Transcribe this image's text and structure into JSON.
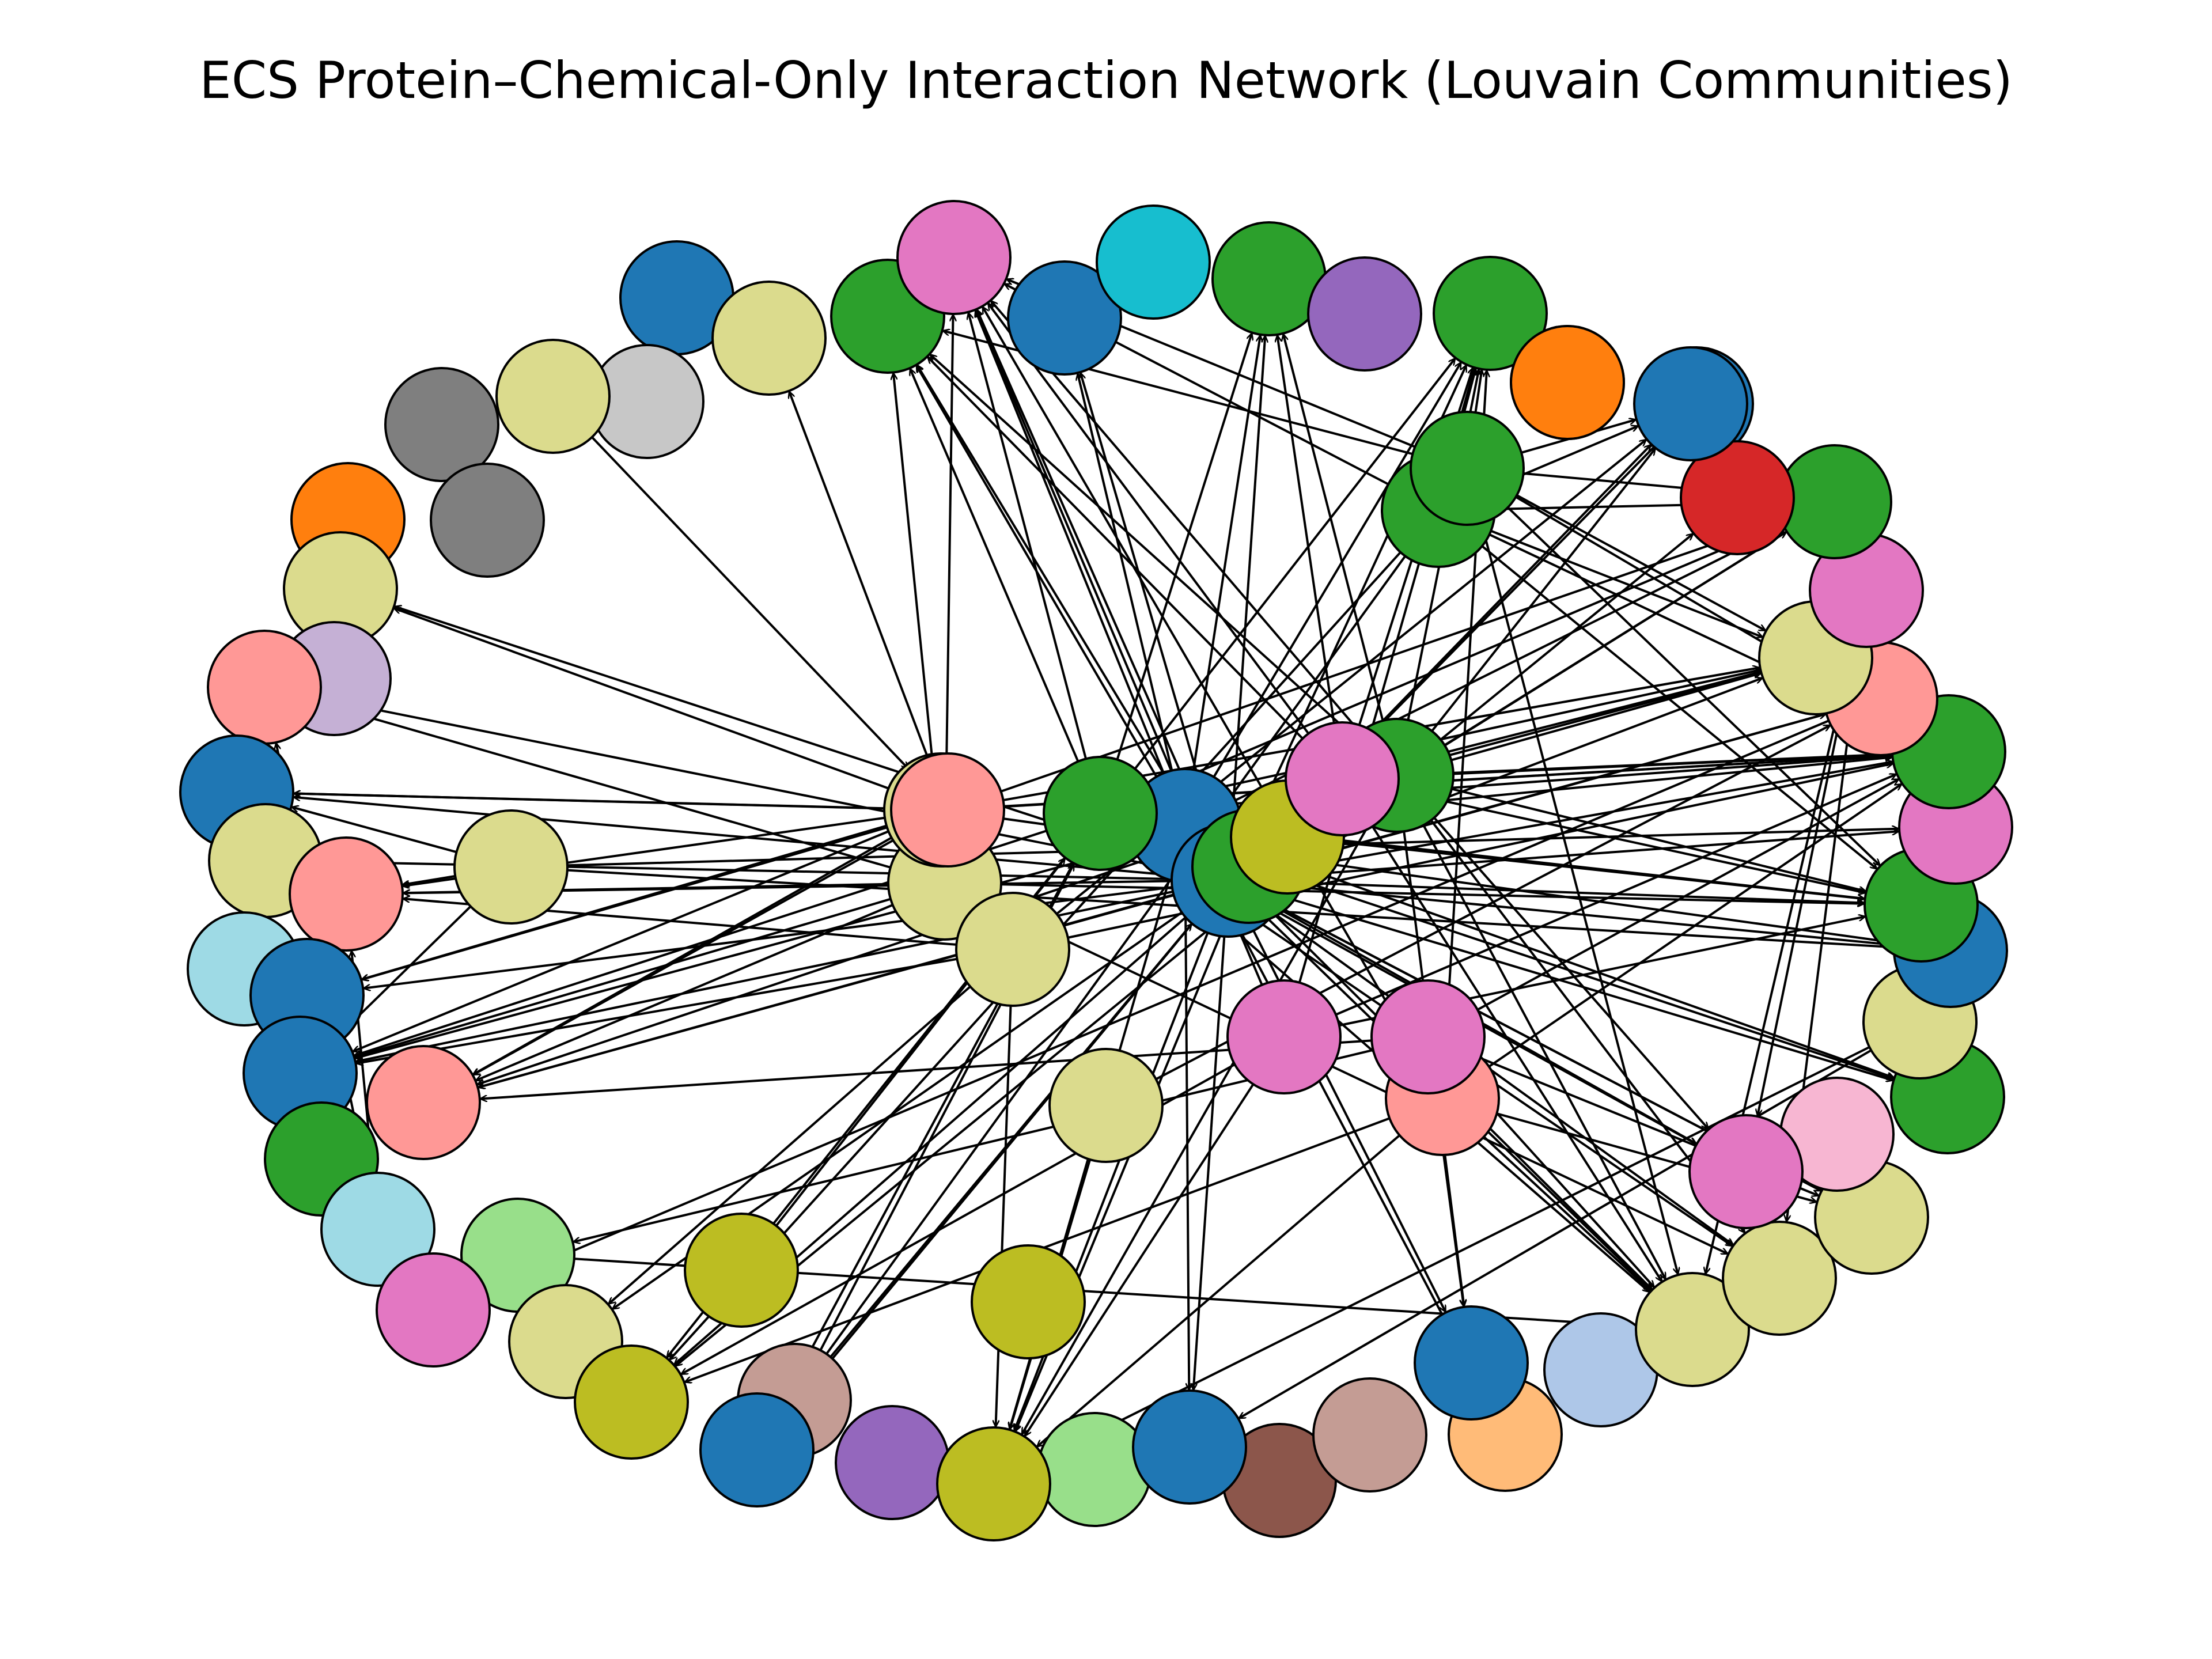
{
  "title": "ECS Protein–Chemical-Only Interaction Network (Louvain Communities)",
  "palette": {
    "tab_blue": "#1f77b4",
    "tab_orange": "#ff7f0e",
    "tab_green": "#2ca02c",
    "tab_red": "#d62728",
    "tab_purple": "#9467bd",
    "tab_brown": "#8c564b",
    "tab_pink": "#e377c2",
    "tab_gray": "#7f7f7f",
    "tab_olive": "#bcbd22",
    "tab_cyan": "#17becf",
    "light_blue": "#aec7e8",
    "light_orange": "#ffbb78",
    "light_green": "#98df8a",
    "light_red": "#ff9896",
    "light_purple": "#c5b0d5",
    "light_brown": "#c49c94",
    "light_pink": "#f7b6d2",
    "light_gray": "#c7c7c7",
    "light_olive": "#dbdb8d",
    "light_cyan": "#9edae5"
  },
  "nodes": [
    {
      "id": "n1",
      "color": "tab_blue"
    },
    {
      "id": "n2",
      "color": "light_olive"
    },
    {
      "id": "n3",
      "color": "tab_green"
    },
    {
      "id": "n4",
      "color": "tab_pink"
    },
    {
      "id": "n5",
      "color": "tab_blue"
    },
    {
      "id": "n6",
      "color": "tab_cyan"
    },
    {
      "id": "n7",
      "color": "tab_green"
    },
    {
      "id": "n8",
      "color": "tab_purple"
    },
    {
      "id": "n9",
      "color": "tab_orange"
    },
    {
      "id": "n10",
      "color": "tab_green"
    },
    {
      "id": "n11",
      "color": "tab_blue"
    },
    {
      "id": "n12",
      "color": "light_gray"
    },
    {
      "id": "n13",
      "color": "light_olive"
    },
    {
      "id": "n14",
      "color": "tab_gray"
    },
    {
      "id": "n15",
      "color": "tab_gray"
    },
    {
      "id": "n16",
      "color": "tab_orange"
    },
    {
      "id": "n17",
      "color": "light_olive"
    },
    {
      "id": "n18",
      "color": "light_purple"
    },
    {
      "id": "n19",
      "color": "light_red"
    },
    {
      "id": "n20",
      "color": "tab_blue"
    },
    {
      "id": "n21",
      "color": "light_olive"
    },
    {
      "id": "n22",
      "color": "light_red"
    },
    {
      "id": "n23",
      "color": "light_cyan"
    },
    {
      "id": "n24",
      "color": "tab_blue"
    },
    {
      "id": "n25",
      "color": "tab_blue"
    },
    {
      "id": "n26",
      "color": "light_red"
    },
    {
      "id": "n27",
      "color": "tab_green"
    },
    {
      "id": "n28",
      "color": "light_cyan"
    },
    {
      "id": "n29",
      "color": "light_green"
    },
    {
      "id": "n30",
      "color": "tab_pink"
    },
    {
      "id": "n31",
      "color": "light_olive"
    },
    {
      "id": "n32",
      "color": "tab_olive"
    },
    {
      "id": "n33",
      "color": "light_brown"
    },
    {
      "id": "n34",
      "color": "tab_blue"
    },
    {
      "id": "n35",
      "color": "tab_purple"
    },
    {
      "id": "n36",
      "color": "light_green"
    },
    {
      "id": "n37",
      "color": "tab_olive"
    },
    {
      "id": "n38",
      "color": "tab_brown"
    },
    {
      "id": "n39",
      "color": "tab_blue"
    },
    {
      "id": "n40",
      "color": "light_brown"
    },
    {
      "id": "n41",
      "color": "light_orange"
    },
    {
      "id": "n42",
      "color": "tab_blue"
    },
    {
      "id": "n43",
      "color": "light_blue"
    },
    {
      "id": "n44",
      "color": "light_olive"
    },
    {
      "id": "n45",
      "color": "light_olive"
    },
    {
      "id": "n46",
      "color": "light_olive"
    },
    {
      "id": "n47",
      "color": "light_pink"
    },
    {
      "id": "n48",
      "color": "tab_pink"
    },
    {
      "id": "n49",
      "color": "tab_green"
    },
    {
      "id": "n50",
      "color": "light_olive"
    },
    {
      "id": "n51",
      "color": "tab_blue"
    },
    {
      "id": "n52",
      "color": "tab_green"
    },
    {
      "id": "n53",
      "color": "tab_pink"
    },
    {
      "id": "n54",
      "color": "tab_green"
    },
    {
      "id": "n55",
      "color": "light_red"
    },
    {
      "id": "n56",
      "color": "light_olive"
    },
    {
      "id": "n57",
      "color": "tab_pink"
    },
    {
      "id": "n58",
      "color": "tab_green"
    },
    {
      "id": "n59",
      "color": "tab_red"
    },
    {
      "id": "n60",
      "color": "tab_blue"
    },
    {
      "id": "n61",
      "color": "tab_orange"
    },
    {
      "id": "n62",
      "color": "tab_green"
    },
    {
      "id": "n63",
      "color": "tab_green"
    },
    {
      "id": "n64",
      "color": "light_olive"
    },
    {
      "id": "n65",
      "color": "tab_olive"
    },
    {
      "id": "n66",
      "color": "tab_olive"
    },
    {
      "id": "n67",
      "color": "light_red"
    },
    {
      "id": "n68",
      "color": "tab_pink"
    },
    {
      "id": "n69",
      "color": "tab_pink"
    },
    {
      "id": "n70",
      "color": "light_olive"
    },
    {
      "id": "n71",
      "color": "light_olive"
    },
    {
      "id": "n72",
      "color": "light_olive"
    },
    {
      "id": "n73",
      "color": "light_red"
    },
    {
      "id": "n74",
      "color": "light_olive"
    },
    {
      "id": "n75",
      "color": "tab_green"
    },
    {
      "id": "n76",
      "color": "tab_blue"
    },
    {
      "id": "n77",
      "color": "tab_blue"
    },
    {
      "id": "n78",
      "color": "tab_green"
    },
    {
      "id": "n79",
      "color": "tab_olive"
    },
    {
      "id": "n80",
      "color": "tab_pink"
    },
    {
      "id": "n81",
      "color": "tab_green"
    }
  ],
  "edges": [
    [
      "n77",
      "n3"
    ],
    [
      "n77",
      "n4"
    ],
    [
      "n77",
      "n5"
    ],
    [
      "n77",
      "n7"
    ],
    [
      "n77",
      "n10"
    ],
    [
      "n77",
      "n11"
    ],
    [
      "n77",
      "n54"
    ],
    [
      "n77",
      "n52"
    ],
    [
      "n77",
      "n56"
    ],
    [
      "n77",
      "n55"
    ],
    [
      "n77",
      "n53"
    ],
    [
      "n77",
      "n58"
    ],
    [
      "n77",
      "n60"
    ],
    [
      "n77",
      "n51"
    ],
    [
      "n77",
      "n49"
    ],
    [
      "n77",
      "n46"
    ],
    [
      "n77",
      "n45"
    ],
    [
      "n77",
      "n44"
    ],
    [
      "n77",
      "n42"
    ],
    [
      "n77",
      "n39"
    ],
    [
      "n77",
      "n37"
    ],
    [
      "n77",
      "n34"
    ],
    [
      "n77",
      "n32"
    ],
    [
      "n77",
      "n31"
    ],
    [
      "n77",
      "n26"
    ],
    [
      "n77",
      "n25"
    ],
    [
      "n77",
      "n24"
    ],
    [
      "n77",
      "n22"
    ],
    [
      "n77",
      "n20"
    ],
    [
      "n77",
      "n19"
    ],
    [
      "n77",
      "n17"
    ],
    [
      "n77",
      "n21"
    ],
    [
      "n77",
      "n48"
    ],
    [
      "n76",
      "n3"
    ],
    [
      "n76",
      "n4"
    ],
    [
      "n76",
      "n5"
    ],
    [
      "n76",
      "n7"
    ],
    [
      "n76",
      "n10"
    ],
    [
      "n76",
      "n37"
    ],
    [
      "n76",
      "n39"
    ],
    [
      "n76",
      "n41"
    ],
    [
      "n76",
      "n44"
    ],
    [
      "n76",
      "n49"
    ],
    [
      "n76",
      "n52"
    ],
    [
      "n76",
      "n54"
    ],
    [
      "n76",
      "n56"
    ],
    [
      "n76",
      "n58"
    ],
    [
      "n81",
      "n7"
    ],
    [
      "n81",
      "n10"
    ],
    [
      "n81",
      "n3"
    ],
    [
      "n81",
      "n54"
    ],
    [
      "n81",
      "n52"
    ],
    [
      "n81",
      "n56"
    ],
    [
      "n81",
      "n58"
    ],
    [
      "n81",
      "n44"
    ],
    [
      "n81",
      "n34"
    ],
    [
      "n81",
      "n32"
    ],
    [
      "n81",
      "n48"
    ],
    [
      "n81",
      "n46"
    ],
    [
      "n81",
      "n45"
    ],
    [
      "n81",
      "n25"
    ],
    [
      "n81",
      "n4"
    ],
    [
      "n81",
      "n49"
    ],
    [
      "n75",
      "n7"
    ],
    [
      "n75",
      "n10"
    ],
    [
      "n75",
      "n3"
    ],
    [
      "n75",
      "n4"
    ],
    [
      "n75",
      "n54"
    ],
    [
      "n75",
      "n52"
    ],
    [
      "n75",
      "n56"
    ],
    [
      "n75",
      "n58"
    ],
    [
      "n75",
      "n59"
    ],
    [
      "n75",
      "n60"
    ],
    [
      "n75",
      "n44"
    ],
    [
      "n75",
      "n42"
    ],
    [
      "n75",
      "n37"
    ],
    [
      "n75",
      "n32"
    ],
    [
      "n75",
      "n26"
    ],
    [
      "n75",
      "n48"
    ],
    [
      "n75",
      "n45"
    ],
    [
      "n75",
      "n25"
    ],
    [
      "n80",
      "n7"
    ],
    [
      "n80",
      "n10"
    ],
    [
      "n80",
      "n3"
    ],
    [
      "n80",
      "n4"
    ],
    [
      "n80",
      "n54"
    ],
    [
      "n80",
      "n52"
    ],
    [
      "n80",
      "n56"
    ],
    [
      "n80",
      "n44"
    ],
    [
      "n73",
      "n2"
    ],
    [
      "n73",
      "n17"
    ],
    [
      "n73",
      "n20"
    ],
    [
      "n73",
      "n24"
    ],
    [
      "n73",
      "n26"
    ],
    [
      "n73",
      "n54"
    ],
    [
      "n73",
      "n56"
    ],
    [
      "n73",
      "n58"
    ],
    [
      "n72",
      "n20"
    ],
    [
      "n72",
      "n24"
    ],
    [
      "n72",
      "n25"
    ],
    [
      "n72",
      "n26"
    ],
    [
      "n72",
      "n54"
    ],
    [
      "n72",
      "n51"
    ],
    [
      "n72",
      "n22"
    ],
    [
      "n70",
      "n3"
    ],
    [
      "n70",
      "n19"
    ],
    [
      "n70",
      "n22"
    ],
    [
      "n70",
      "n25"
    ],
    [
      "n70",
      "n26"
    ],
    [
      "n70",
      "n45"
    ],
    [
      "n70",
      "n52"
    ],
    [
      "n70",
      "n4"
    ],
    [
      "n71",
      "n22"
    ],
    [
      "n71",
      "n25"
    ],
    [
      "n71",
      "n31"
    ],
    [
      "n71",
      "n37"
    ],
    [
      "n71",
      "n60"
    ],
    [
      "n71",
      "n54"
    ],
    [
      "n74",
      "n37"
    ],
    [
      "n74",
      "n55"
    ],
    [
      "n64",
      "n51"
    ],
    [
      "n64",
      "n53"
    ],
    [
      "n64",
      "n20"
    ],
    [
      "n64",
      "n22"
    ],
    [
      "n64",
      "n25"
    ],
    [
      "n67",
      "n32"
    ],
    [
      "n67",
      "n37"
    ],
    [
      "n67",
      "n44"
    ],
    [
      "n67",
      "n46"
    ],
    [
      "n67",
      "n54"
    ],
    [
      "n67",
      "n10"
    ],
    [
      "n67",
      "n4"
    ],
    [
      "n68",
      "n32"
    ],
    [
      "n68",
      "n37"
    ],
    [
      "n68",
      "n52"
    ],
    [
      "n68",
      "n54"
    ],
    [
      "n68",
      "n10"
    ],
    [
      "n68",
      "n4"
    ],
    [
      "n69",
      "n44"
    ],
    [
      "n69",
      "n46"
    ],
    [
      "n69",
      "n42"
    ],
    [
      "n69",
      "n26"
    ],
    [
      "n69",
      "n29"
    ],
    [
      "n69",
      "n54"
    ],
    [
      "n62",
      "n4"
    ],
    [
      "n62",
      "n10"
    ],
    [
      "n62",
      "n52"
    ],
    [
      "n62",
      "n54"
    ],
    [
      "n62",
      "n56"
    ],
    [
      "n62",
      "n58"
    ],
    [
      "n62",
      "n60"
    ],
    [
      "n62",
      "n34"
    ],
    [
      "n62",
      "n32"
    ],
    [
      "n63",
      "n10"
    ],
    [
      "n63",
      "n52"
    ],
    [
      "n63",
      "n54"
    ],
    [
      "n63",
      "n56"
    ],
    [
      "n63",
      "n58"
    ],
    [
      "n63",
      "n60"
    ],
    [
      "n63",
      "n44"
    ],
    [
      "n63",
      "n4"
    ],
    [
      "n63",
      "n3"
    ],
    [
      "n50",
      "n52"
    ],
    [
      "n50",
      "n54"
    ],
    [
      "n50",
      "n39"
    ],
    [
      "n50",
      "n37"
    ],
    [
      "n57",
      "n48"
    ],
    [
      "n57",
      "n45"
    ],
    [
      "n57",
      "n44"
    ],
    [
      "n55",
      "n30"
    ],
    [
      "n55",
      "n26"
    ],
    [
      "n29",
      "n44"
    ],
    [
      "n29",
      "n31"
    ],
    [
      "n28",
      "n22"
    ],
    [
      "n28",
      "n19"
    ],
    [
      "n33",
      "n81"
    ],
    [
      "n33",
      "n77"
    ],
    [
      "n13",
      "n73"
    ],
    [
      "n66",
      "n81"
    ],
    [
      "n78",
      "n37"
    ]
  ]
}
